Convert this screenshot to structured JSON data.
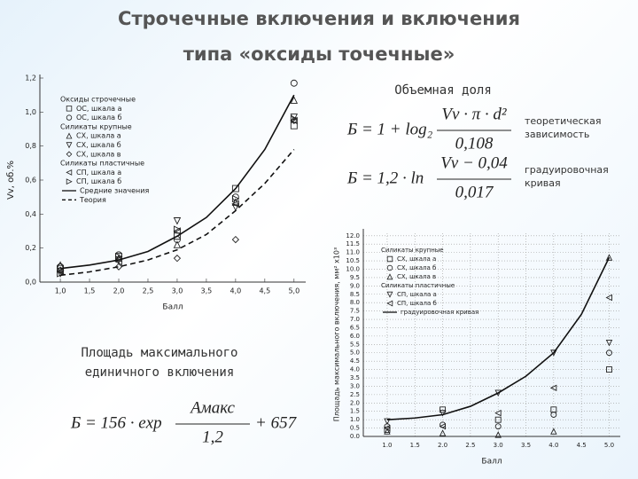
{
  "slide": {
    "title": [
      "Строчечные включения и включения",
      "типа «оксиды точечные»"
    ],
    "label_volume": "Объемная доля",
    "label_area": [
      "Площадь максимального",
      "единичного включения"
    ],
    "formulas": [
      {
        "lhs": "Б = 1 + log₂",
        "num": "Vv · π · d²",
        "den": "0,108",
        "note": [
          "теоретическая",
          "зависимость"
        ]
      },
      {
        "lhs": "Б = 1,2 · ln",
        "num": "Vv − 0,04",
        "den": "0,017",
        "note": [
          "градуировочная",
          "кривая"
        ]
      },
      {
        "lhs": "Б = 156 · exp",
        "num": "Aмакс",
        "den": "1,2",
        "rhs": "+ 657"
      }
    ]
  },
  "chart_data": [
    {
      "type": "line",
      "xlabel": "Балл",
      "ylabel": "Vv, об.%",
      "xlim": [
        0.65,
        5.2
      ],
      "ylim": [
        0,
        1.2
      ],
      "grid": false,
      "xticks": [
        {
          "value": 1,
          "label": "1,0"
        },
        {
          "value": 1.5,
          "label": "1,5"
        },
        {
          "value": 2,
          "label": "2,0"
        },
        {
          "value": 2.5,
          "label": "2,5"
        },
        {
          "value": 3,
          "label": "3,0"
        },
        {
          "value": 3.5,
          "label": "3,5"
        },
        {
          "value": 4,
          "label": "4,0"
        },
        {
          "value": 4.5,
          "label": "4,5"
        },
        {
          "value": 5,
          "label": "5,0"
        }
      ],
      "yticks": [
        {
          "value": 0,
          "label": "0,0"
        },
        {
          "value": 0.2,
          "label": "0,2"
        },
        {
          "value": 0.4,
          "label": "0,4"
        },
        {
          "value": 0.6,
          "label": "0,6"
        },
        {
          "value": 0.8,
          "label": "0,8"
        },
        {
          "value": 1.0,
          "label": "1,0"
        },
        {
          "value": 1.2,
          "label": "1,2"
        }
      ],
      "groups": [
        "Оксиды строчечные",
        "Силикаты крупные",
        "Силикаты пластичные"
      ],
      "series": [
        {
          "name": "ОС, шкала а",
          "group": 0,
          "marker": "square",
          "x": [
            1,
            2,
            3,
            4,
            5
          ],
          "values": [
            0.08,
            0.15,
            0.27,
            0.55,
            0.92
          ]
        },
        {
          "name": "ОС, шкала б",
          "group": 0,
          "marker": "circle",
          "x": [
            1,
            2,
            3,
            4,
            5
          ],
          "values": [
            0.09,
            0.16,
            0.25,
            0.5,
            1.17
          ]
        },
        {
          "name": "СХ, шкала а",
          "group": 1,
          "marker": "tri-up",
          "x": [
            1,
            2,
            3,
            4,
            5
          ],
          "values": [
            0.1,
            0.14,
            0.22,
            0.47,
            1.07
          ]
        },
        {
          "name": "СХ, шкала б",
          "group": 1,
          "marker": "tri-down",
          "x": [
            1,
            2,
            3,
            4,
            5
          ],
          "values": [
            0.05,
            0.13,
            0.36,
            0.44,
            0.97
          ]
        },
        {
          "name": "СХ, шкала в",
          "group": 1,
          "marker": "diamond",
          "x": [
            1,
            2,
            3,
            4,
            5
          ],
          "values": [
            0.07,
            0.09,
            0.14,
            0.25,
            0.95
          ]
        },
        {
          "name": "СП, шкала а",
          "group": 2,
          "marker": "tri-left",
          "x": [
            1,
            2,
            3,
            4,
            5
          ],
          "values": [
            0.06,
            0.12,
            0.3,
            0.46,
            0.95
          ]
        },
        {
          "name": "СП, шкала б",
          "group": 2,
          "marker": "tri-right",
          "x": [
            1,
            2,
            3,
            4,
            5
          ],
          "values": [
            0.05,
            0.15,
            0.31,
            0.49,
            0.96
          ]
        },
        {
          "name": "Средние значения",
          "dash": false,
          "x": [
            1,
            1.5,
            2,
            2.5,
            3,
            3.5,
            4,
            4.5,
            5
          ],
          "values": [
            0.08,
            0.1,
            0.13,
            0.18,
            0.27,
            0.38,
            0.55,
            0.78,
            1.1
          ]
        },
        {
          "name": "Теория",
          "dash": true,
          "x": [
            1,
            1.5,
            2,
            2.5,
            3,
            3.5,
            4,
            4.5,
            5
          ],
          "values": [
            0.04,
            0.06,
            0.09,
            0.13,
            0.19,
            0.28,
            0.42,
            0.58,
            0.78
          ]
        }
      ]
    },
    {
      "type": "line",
      "xlabel": "Балл",
      "ylabel": "Площадь максимального включения, мм² x10³",
      "xlim": [
        0.57,
        5.2
      ],
      "ylim": [
        0,
        12.2
      ],
      "grid": true,
      "xticks": [
        {
          "value": 1,
          "label": "1.0"
        },
        {
          "value": 1.5,
          "label": "1.5"
        },
        {
          "value": 2,
          "label": "2.0"
        },
        {
          "value": 2.5,
          "label": "2.5"
        },
        {
          "value": 3,
          "label": "3.0"
        },
        {
          "value": 3.5,
          "label": "3.5"
        },
        {
          "value": 4,
          "label": "4.0"
        },
        {
          "value": 4.5,
          "label": "4.5"
        },
        {
          "value": 5,
          "label": "5.0"
        }
      ],
      "yticks": [
        {
          "value": 0,
          "label": "0.0"
        },
        {
          "value": 0.5,
          "label": "0.5"
        },
        {
          "value": 1,
          "label": "1.0"
        },
        {
          "value": 1.5,
          "label": "1.5"
        },
        {
          "value": 2,
          "label": "2.0"
        },
        {
          "value": 2.5,
          "label": "2.5"
        },
        {
          "value": 3,
          "label": "3.0"
        },
        {
          "value": 3.5,
          "label": "3.5"
        },
        {
          "value": 4,
          "label": "4.0"
        },
        {
          "value": 4.5,
          "label": "4.5"
        },
        {
          "value": 5,
          "label": "5.0"
        },
        {
          "value": 5.5,
          "label": "5.5"
        },
        {
          "value": 6,
          "label": "6.0"
        },
        {
          "value": 6.5,
          "label": "6.5"
        },
        {
          "value": 7,
          "label": "7.0"
        },
        {
          "value": 7.5,
          "label": "7.5"
        },
        {
          "value": 8,
          "label": "8.0"
        },
        {
          "value": 8.5,
          "label": "8.5"
        },
        {
          "value": 9,
          "label": "9.0"
        },
        {
          "value": 9.5,
          "label": "9.5"
        },
        {
          "value": 10,
          "label": "10.0"
        },
        {
          "value": 10.5,
          "label": "10.5"
        },
        {
          "value": 11,
          "label": "11.0"
        },
        {
          "value": 11.5,
          "label": "11.5"
        },
        {
          "value": 12,
          "label": "12.0"
        }
      ],
      "groups": [
        "Силикаты крупные",
        "Силикаты пластичные"
      ],
      "series": [
        {
          "name": "СХ, шкала а",
          "group": 0,
          "marker": "square",
          "x": [
            1,
            2,
            3,
            4,
            5
          ],
          "values": [
            0.4,
            1.6,
            1.0,
            1.6,
            4.0
          ]
        },
        {
          "name": "СХ, шкала б",
          "group": 0,
          "marker": "circle",
          "x": [
            1,
            2,
            3,
            4,
            5
          ],
          "values": [
            0.6,
            0.7,
            0.6,
            1.3,
            5.0
          ]
        },
        {
          "name": "СХ, шкала в",
          "group": 0,
          "marker": "tri-up",
          "x": [
            1,
            2,
            3,
            4,
            5
          ],
          "values": [
            0.3,
            0.2,
            0.1,
            0.3,
            10.7
          ]
        },
        {
          "name": "СП, шкала а",
          "group": 1,
          "marker": "tri-down",
          "x": [
            1,
            2,
            3,
            4,
            5
          ],
          "values": [
            0.9,
            1.4,
            2.6,
            5.0,
            5.6
          ]
        },
        {
          "name": "СП, шкала б",
          "group": 1,
          "marker": "tri-left",
          "x": [
            1,
            2,
            3,
            4,
            5
          ],
          "values": [
            0.5,
            0.6,
            1.4,
            2.9,
            8.3
          ]
        },
        {
          "name": "градуировочная кривая",
          "dash": false,
          "x": [
            1,
            1.5,
            2,
            2.5,
            3,
            3.5,
            4,
            4.5,
            5
          ],
          "values": [
            1.0,
            1.1,
            1.3,
            1.8,
            2.6,
            3.6,
            5.0,
            7.3,
            10.7
          ]
        }
      ]
    }
  ]
}
